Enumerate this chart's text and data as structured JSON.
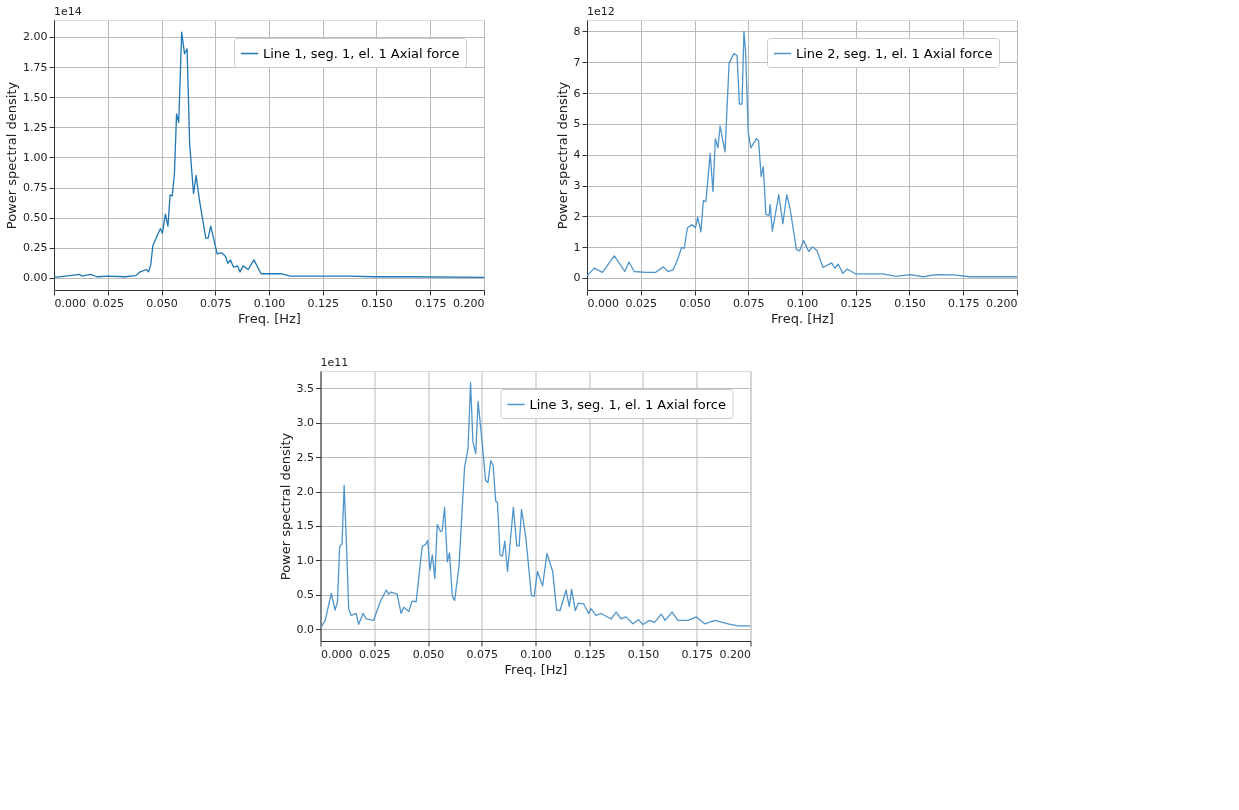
{
  "chart_data": [
    {
      "type": "line",
      "xlabel": "Freq. [Hz]",
      "ylabel": "Power spectral density",
      "annotations": [
        "1e14"
      ],
      "legend": "top right",
      "grid": true,
      "xlim": [
        0,
        0.2
      ],
      "ylim": [
        -0.1,
        2.14
      ],
      "xticks": [
        {
          "value": 0,
          "label": "0.000"
        },
        {
          "value": 0.025,
          "label": "0.025"
        },
        {
          "value": 0.05,
          "label": "0.050"
        },
        {
          "value": 0.075,
          "label": "0.075"
        },
        {
          "value": 0.1,
          "label": "0.100"
        },
        {
          "value": 0.125,
          "label": "0.125"
        },
        {
          "value": 0.15,
          "label": "0.150"
        },
        {
          "value": 0.175,
          "label": "0.175"
        },
        {
          "value": 0.2,
          "label": "0.200"
        }
      ],
      "yticks": [
        {
          "value": 0,
          "label": "0.00"
        },
        {
          "value": 0.25,
          "label": "0.25"
        },
        {
          "value": 0.5,
          "label": "0.50"
        },
        {
          "value": 0.75,
          "label": "0.75"
        },
        {
          "value": 1,
          "label": "1.00"
        },
        {
          "value": 1.25,
          "label": "1.25"
        },
        {
          "value": 1.5,
          "label": "1.50"
        },
        {
          "value": 1.75,
          "label": "1.75"
        },
        {
          "value": 2,
          "label": "2.00"
        }
      ],
      "series": [
        {
          "name": "Line 1, seg. 1, el. 1 Axial force",
          "color": "#1f77b4",
          "x": [
            0,
            0.0072,
            0.0118,
            0.013,
            0.017,
            0.02,
            0.025,
            0.033,
            0.038,
            0.04,
            0.043,
            0.044,
            0.045,
            0.046,
            0.048,
            0.0495,
            0.0504,
            0.0518,
            0.053,
            0.054,
            0.055,
            0.056,
            0.057,
            0.058,
            0.0594,
            0.0607,
            0.0619,
            0.0631,
            0.0649,
            0.0661,
            0.0676,
            0.0706,
            0.0717,
            0.0729,
            0.0759,
            0.0779,
            0.0797,
            0.0809,
            0.082,
            0.0835,
            0.0854,
            0.0865,
            0.088,
            0.0903,
            0.093,
            0.0963,
            0.101,
            0.1054,
            0.11,
            0.119,
            0.131,
            0.137,
            0.149,
            0.164,
            0.2
          ],
          "values": [
            0.005,
            0.02,
            0.03,
            0.015,
            0.03,
            0.01,
            0.015,
            0.01,
            0.02,
            0.05,
            0.07,
            0.05,
            0.11,
            0.27,
            0.35,
            0.41,
            0.37,
            0.53,
            0.43,
            0.69,
            0.68,
            0.86,
            1.36,
            1.29,
            2.04,
            1.86,
            1.9,
            1.11,
            0.7,
            0.85,
            0.65,
            0.33,
            0.33,
            0.43,
            0.2,
            0.21,
            0.18,
            0.12,
            0.15,
            0.09,
            0.1,
            0.05,
            0.1,
            0.07,
            0.15,
            0.035,
            0.035,
            0.035,
            0.015,
            0.015,
            0.015,
            0.015,
            0.01,
            0.01,
            0.005
          ]
        }
      ]
    },
    {
      "type": "line",
      "xlabel": "Freq. [Hz]",
      "ylabel": "Power spectral density",
      "annotations": [
        "1e12"
      ],
      "legend": "top right",
      "grid": true,
      "xlim": [
        0,
        0.2
      ],
      "ylim": [
        -0.39,
        8.37
      ],
      "xticks": [
        {
          "value": 0,
          "label": "0.000"
        },
        {
          "value": 0.025,
          "label": "0.025"
        },
        {
          "value": 0.05,
          "label": "0.050"
        },
        {
          "value": 0.075,
          "label": "0.075"
        },
        {
          "value": 0.1,
          "label": "0.100"
        },
        {
          "value": 0.125,
          "label": "0.125"
        },
        {
          "value": 0.15,
          "label": "0.150"
        },
        {
          "value": 0.175,
          "label": "0.175"
        },
        {
          "value": 0.2,
          "label": "0.200"
        }
      ],
      "yticks": [
        0,
        1,
        2,
        3,
        4,
        5,
        6,
        7,
        8
      ],
      "series": [
        {
          "name": "Line 2, seg. 1, el. 1 Axial force",
          "color": "#4f95cc",
          "x": [
            0,
            0.0034,
            0.0072,
            0.0127,
            0.0176,
            0.0195,
            0.022,
            0.0273,
            0.0318,
            0.0355,
            0.0377,
            0.04,
            0.0422,
            0.044,
            0.0452,
            0.0467,
            0.0489,
            0.0504,
            0.0515,
            0.053,
            0.0541,
            0.0553,
            0.0573,
            0.0586,
            0.0597,
            0.0609,
            0.0619,
            0.0642,
            0.0661,
            0.0683,
            0.0698,
            0.0709,
            0.0721,
            0.073,
            0.0738,
            0.075,
            0.0762,
            0.0788,
            0.0798,
            0.081,
            0.082,
            0.0832,
            0.0847,
            0.0852,
            0.0862,
            0.0892,
            0.0911,
            0.0929,
            0.0944,
            0.0974,
            0.0989,
            0.1007,
            0.1031,
            0.1049,
            0.107,
            0.1098,
            0.1138,
            0.1153,
            0.1168,
            0.119,
            0.121,
            0.125,
            0.1332,
            0.1377,
            0.1436,
            0.1503,
            0.1563,
            0.1622,
            0.1705,
            0.178,
            0.2
          ],
          "values": [
            0.07,
            0.32,
            0.18,
            0.72,
            0.21,
            0.52,
            0.21,
            0.18,
            0.18,
            0.36,
            0.21,
            0.26,
            0.61,
            0.99,
            0.96,
            1.63,
            1.73,
            1.63,
            1.97,
            1.5,
            2.51,
            2.48,
            4.04,
            2.8,
            4.52,
            4.22,
            4.93,
            4.09,
            6.98,
            7.28,
            7.22,
            5.64,
            5.64,
            8.0,
            7.3,
            4.73,
            4.22,
            4.52,
            4.46,
            3.29,
            3.61,
            2.06,
            2.03,
            2.38,
            1.52,
            2.7,
            1.76,
            2.7,
            2.27,
            0.93,
            0.88,
            1.22,
            0.86,
            1.01,
            0.88,
            0.34,
            0.49,
            0.32,
            0.45,
            0.15,
            0.29,
            0.13,
            0.13,
            0.13,
            0.05,
            0.11,
            0.04,
            0.11,
            0.1,
            0.04,
            0.04
          ]
        }
      ]
    },
    {
      "type": "line",
      "xlabel": "Freq. [Hz]",
      "ylabel": "Power spectral density",
      "annotations": [
        "1e11"
      ],
      "legend": "top right",
      "grid": true,
      "xlim": [
        0,
        0.2
      ],
      "ylim": [
        -0.17,
        3.75
      ],
      "xticks": [
        {
          "value": 0,
          "label": "0.000"
        },
        {
          "value": 0.025,
          "label": "0.025"
        },
        {
          "value": 0.05,
          "label": "0.050"
        },
        {
          "value": 0.075,
          "label": "0.075"
        },
        {
          "value": 0.1,
          "label": "0.100"
        },
        {
          "value": 0.125,
          "label": "0.125"
        },
        {
          "value": 0.15,
          "label": "0.150"
        },
        {
          "value": 0.175,
          "label": "0.175"
        },
        {
          "value": 0.2,
          "label": "0.200"
        }
      ],
      "yticks": [
        {
          "value": 0,
          "label": "0.0"
        },
        {
          "value": 0.5,
          "label": "0.5"
        },
        {
          "value": 1,
          "label": "1.0"
        },
        {
          "value": 1.5,
          "label": "1.5"
        },
        {
          "value": 2,
          "label": "2.0"
        },
        {
          "value": 2.5,
          "label": "2.5"
        },
        {
          "value": 3,
          "label": "3.0"
        },
        {
          "value": 3.5,
          "label": "3.5"
        }
      ],
      "series": [
        {
          "name": "Line 3, seg. 1, el. 1 Axial force",
          "color": "#4f95cc",
          "x": [
            0,
            0.0022,
            0.005,
            0.0068,
            0.0079,
            0.0089,
            0.01,
            0.011,
            0.012,
            0.0131,
            0.0142,
            0.0166,
            0.0177,
            0.0198,
            0.0213,
            0.0247,
            0.0278,
            0.0306,
            0.0317,
            0.0328,
            0.0356,
            0.0375,
            0.0387,
            0.0411,
            0.0426,
            0.0445,
            0.0473,
            0.0488,
            0.0499,
            0.0509,
            0.052,
            0.0532,
            0.0543,
            0.0558,
            0.0566,
            0.0577,
            0.059,
            0.06,
            0.0613,
            0.0624,
            0.0644,
            0.067,
            0.0686,
            0.0698,
            0.0709,
            0.0722,
            0.0733,
            0.0753,
            0.0768,
            0.0779,
            0.0792,
            0.0803,
            0.0815,
            0.0823,
            0.0835,
            0.0846,
            0.0857,
            0.087,
            0.0897,
            0.0913,
            0.0924,
            0.0935,
            0.0955,
            0.0981,
            0.0994,
            0.1009,
            0.1033,
            0.1053,
            0.108,
            0.1098,
            0.1114,
            0.1142,
            0.1157,
            0.1168,
            0.1185,
            0.1199,
            0.1224,
            0.1247,
            0.1258,
            0.1282,
            0.1305,
            0.1352,
            0.1375,
            0.1398,
            0.1421,
            0.1453,
            0.1479,
            0.1499,
            0.153,
            0.1554,
            0.1585,
            0.1603,
            0.1635,
            0.1663,
            0.171,
            0.1748,
            0.1787,
            0.1834,
            0.1896,
            0.1942,
            0.2
          ],
          "values": [
            0.02,
            0.13,
            0.52,
            0.28,
            0.4,
            1.2,
            1.24,
            2.09,
            1.3,
            0.3,
            0.2,
            0.23,
            0.07,
            0.23,
            0.15,
            0.13,
            0.4,
            0.57,
            0.51,
            0.54,
            0.51,
            0.23,
            0.32,
            0.26,
            0.41,
            0.4,
            1.2,
            1.23,
            1.29,
            0.86,
            1.08,
            0.74,
            1.52,
            1.42,
            1.43,
            1.77,
            0.98,
            1.11,
            0.48,
            0.42,
            0.91,
            2.35,
            2.62,
            3.58,
            2.72,
            2.55,
            3.31,
            2.67,
            2.16,
            2.13,
            2.45,
            2.38,
            1.86,
            1.84,
            1.08,
            1.06,
            1.28,
            0.84,
            1.77,
            1.21,
            1.21,
            1.74,
            1.33,
            0.49,
            0.48,
            0.84,
            0.63,
            1.1,
            0.84,
            0.28,
            0.27,
            0.57,
            0.33,
            0.58,
            0.27,
            0.38,
            0.37,
            0.23,
            0.3,
            0.2,
            0.23,
            0.15,
            0.25,
            0.15,
            0.18,
            0.08,
            0.14,
            0.07,
            0.13,
            0.1,
            0.22,
            0.13,
            0.25,
            0.13,
            0.13,
            0.18,
            0.08,
            0.13,
            0.08,
            0.05,
            0.05
          ]
        }
      ]
    }
  ]
}
